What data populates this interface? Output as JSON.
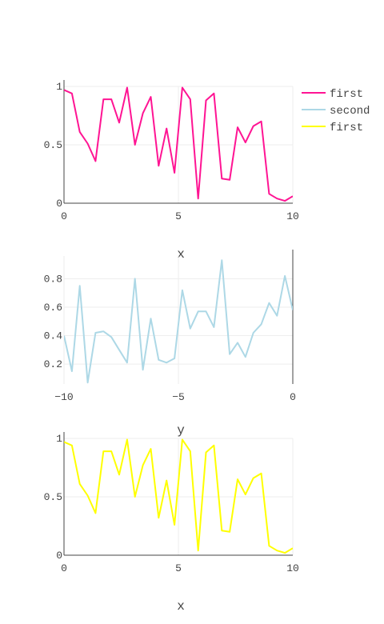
{
  "chart_data": [
    {
      "type": "line",
      "xlabel": "x",
      "ylabel": "",
      "xlim": [
        0,
        10
      ],
      "ylim": [
        0,
        1
      ],
      "xticks": [
        "0",
        "5",
        "10"
      ],
      "yticks": [
        "0",
        "0.5",
        "1"
      ],
      "grid": true,
      "legend_position": "top-right",
      "series": [
        {
          "name": "first",
          "color": "#ff1493",
          "x": [
            0,
            0.345,
            0.69,
            1.034,
            1.379,
            1.724,
            2.069,
            2.414,
            2.759,
            3.103,
            3.448,
            3.793,
            4.138,
            4.483,
            4.828,
            5.172,
            5.517,
            5.862,
            6.207,
            6.552,
            6.897,
            7.241,
            7.586,
            7.931,
            8.276,
            8.621,
            8.966,
            9.31,
            9.655,
            10
          ],
          "y": [
            0.97,
            0.94,
            0.61,
            0.51,
            0.36,
            0.89,
            0.89,
            0.69,
            0.99,
            0.5,
            0.77,
            0.91,
            0.32,
            0.64,
            0.26,
            0.99,
            0.89,
            0.04,
            0.88,
            0.94,
            0.21,
            0.2,
            0.65,
            0.52,
            0.66,
            0.7,
            0.08,
            0.04,
            0.02,
            0.06
          ]
        }
      ]
    },
    {
      "type": "line",
      "xlabel": "y",
      "ylabel": "",
      "xlim": [
        -10,
        0
      ],
      "ylim": [
        0.06,
        0.96
      ],
      "xticks": [
        "−10",
        "−5",
        "0"
      ],
      "yticks": [
        "0.2",
        "0.4",
        "0.6",
        "0.8"
      ],
      "grid": true,
      "series": [
        {
          "name": "second",
          "color": "#add8e6",
          "x": [
            -10,
            -9.655,
            -9.31,
            -8.966,
            -8.621,
            -8.276,
            -7.931,
            -7.586,
            -7.241,
            -6.897,
            -6.552,
            -6.207,
            -5.862,
            -5.517,
            -5.172,
            -4.828,
            -4.483,
            -4.138,
            -3.793,
            -3.448,
            -3.103,
            -2.759,
            -2.414,
            -2.069,
            -1.724,
            -1.379,
            -1.034,
            -0.69,
            -0.345,
            0
          ],
          "y": [
            0.4,
            0.15,
            0.75,
            0.07,
            0.42,
            0.43,
            0.39,
            0.3,
            0.21,
            0.8,
            0.16,
            0.52,
            0.23,
            0.21,
            0.24,
            0.72,
            0.45,
            0.57,
            0.57,
            0.46,
            0.93,
            0.27,
            0.35,
            0.25,
            0.42,
            0.48,
            0.63,
            0.54,
            0.82,
            0.58
          ]
        }
      ]
    },
    {
      "type": "line",
      "xlabel": "x",
      "ylabel": "",
      "xlim": [
        0,
        10
      ],
      "ylim": [
        0,
        1
      ],
      "xticks": [
        "0",
        "5",
        "10"
      ],
      "yticks": [
        "0",
        "0.5",
        "1"
      ],
      "grid": true,
      "series": [
        {
          "name": "first",
          "color": "#ffff00",
          "x": [
            0,
            0.345,
            0.69,
            1.034,
            1.379,
            1.724,
            2.069,
            2.414,
            2.759,
            3.103,
            3.448,
            3.793,
            4.138,
            4.483,
            4.828,
            5.172,
            5.517,
            5.862,
            6.207,
            6.552,
            6.897,
            7.241,
            7.586,
            7.931,
            8.276,
            8.621,
            8.966,
            9.31,
            9.655,
            10
          ],
          "y": [
            0.97,
            0.94,
            0.61,
            0.51,
            0.36,
            0.89,
            0.89,
            0.69,
            0.99,
            0.5,
            0.77,
            0.91,
            0.32,
            0.64,
            0.26,
            0.99,
            0.89,
            0.04,
            0.88,
            0.94,
            0.21,
            0.2,
            0.65,
            0.52,
            0.66,
            0.7,
            0.08,
            0.04,
            0.02,
            0.06
          ]
        }
      ]
    }
  ],
  "legend": [
    {
      "label": "first",
      "color": "#ff1493"
    },
    {
      "label": "second",
      "color": "#add8e6"
    },
    {
      "label": "first",
      "color": "#ffff00"
    }
  ]
}
